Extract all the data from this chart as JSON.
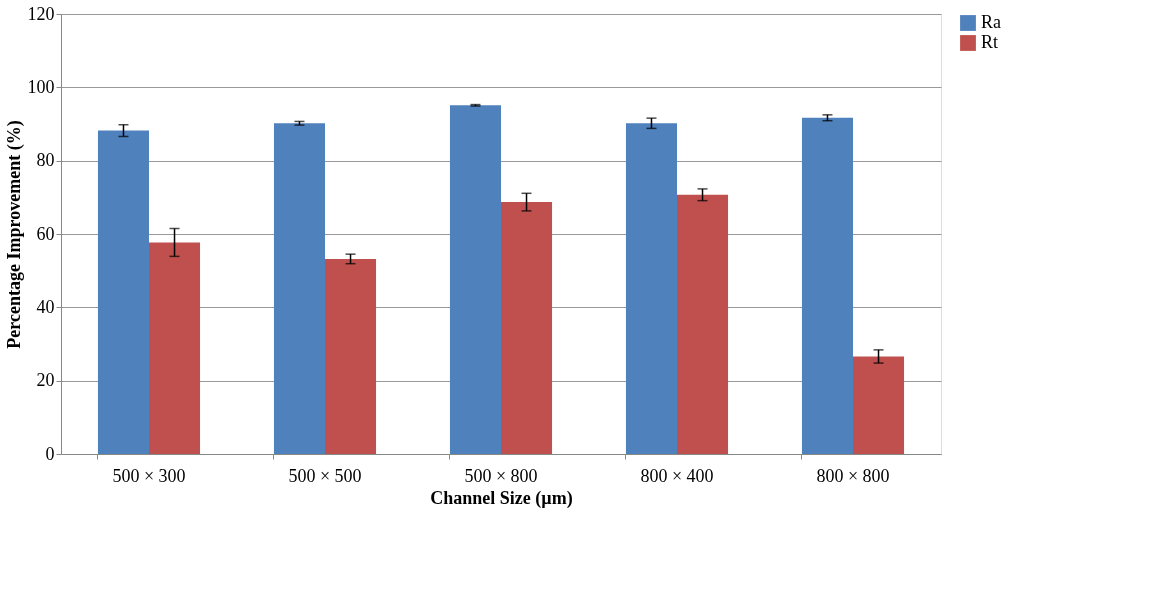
{
  "chart_data": {
    "type": "bar",
    "xlabel": "Channel Size (µm)",
    "ylabel": "Percentage Improvement (%)",
    "categories": [
      "500 × 300",
      "500 × 500",
      "500 × 800",
      "800 × 400",
      "800 × 800"
    ],
    "series": [
      {
        "name": "Ra",
        "color": "#4f81bd",
        "values": [
          88.2,
          90.2,
          95.1,
          90.2,
          91.7
        ],
        "errors": [
          1.6,
          0.5,
          0.2,
          1.4,
          0.8
        ]
      },
      {
        "name": "Rt",
        "color": "#c0504d",
        "values": [
          57.7,
          53.2,
          68.7,
          70.7,
          26.6
        ],
        "errors": [
          3.8,
          1.3,
          2.4,
          1.6,
          1.8
        ]
      }
    ],
    "ylim": [
      0,
      120
    ],
    "yticks": [
      0,
      20,
      40,
      60,
      80,
      100,
      120
    ],
    "grid": "y",
    "legend": "right"
  }
}
